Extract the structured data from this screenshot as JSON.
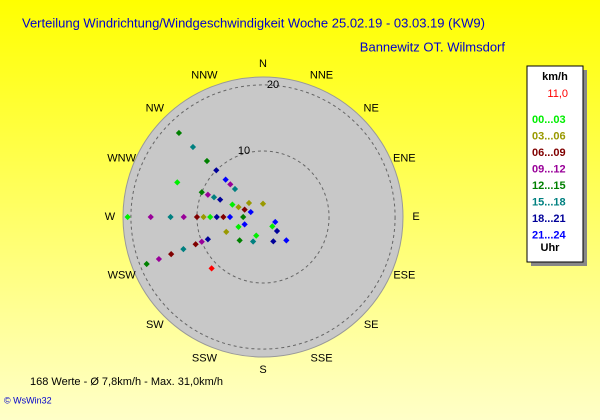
{
  "chart_data": {
    "type": "polar-scatter",
    "title": "Verteilung Windrichtung/Windgeschwindigkeit  Woche 25.02.19 - 03.03.19 (KW9)",
    "subtitle": "Bannewitz OT. Wilmsdorf",
    "directions": [
      "N",
      "NNE",
      "NE",
      "ENE",
      "E",
      "ESE",
      "SE",
      "SSE",
      "S",
      "SSW",
      "SW",
      "WSW",
      "W",
      "WNW",
      "NW",
      "NNW"
    ],
    "rlim": [
      0,
      21.2
    ],
    "rticks": [
      10,
      20
    ],
    "legend_title": "km/h",
    "current_value": {
      "value": 11.0,
      "label": "11,0",
      "direction": 225,
      "color": "#ff0000"
    },
    "legend_footer": "Uhr",
    "series": [
      {
        "name": "00...03",
        "color": "#00ee00",
        "direction": [
          292,
          292,
          270,
          270,
          248,
          135,
          200
        ],
        "values": [
          14,
          5,
          20.5,
          8,
          4,
          2,
          3
        ]
      },
      {
        "name": "03...06",
        "color": "#999900",
        "direction": [
          315,
          270,
          248,
          292,
          0
        ],
        "values": [
          3,
          9,
          6,
          4,
          2
        ]
      },
      {
        "name": "06...09",
        "color": "#800000",
        "direction": [
          270,
          270,
          248,
          248,
          292
        ],
        "values": [
          6,
          10,
          15,
          11,
          3
        ]
      },
      {
        "name": "09...12",
        "color": "#990099",
        "direction": [
          270,
          270,
          248,
          248,
          315,
          292
        ],
        "values": [
          12,
          17,
          10,
          17,
          7,
          9
        ]
      },
      {
        "name": "12...15",
        "color": "#008000",
        "direction": [
          315,
          315,
          248,
          270,
          292,
          225
        ],
        "values": [
          18,
          12,
          19,
          3,
          10,
          5
        ]
      },
      {
        "name": "15...18",
        "color": "#008080",
        "direction": [
          315,
          292,
          270,
          248,
          315,
          202
        ],
        "values": [
          15,
          8,
          14,
          13,
          6,
          4
        ]
      },
      {
        "name": "18...21",
        "color": "#000099",
        "direction": [
          292,
          270,
          248,
          135,
          157,
          315
        ],
        "values": [
          7,
          7,
          9,
          3,
          4,
          10
        ]
      },
      {
        "name": "21...24",
        "color": "#0000ff",
        "direction": [
          270,
          248,
          292,
          135,
          112,
          315
        ],
        "values": [
          5,
          3,
          2,
          5,
          2,
          8
        ]
      }
    ],
    "footer": "168 Werte   -   Ø 7,8km/h   -   Max. 31,0km/h",
    "copyright": "© WsWin32"
  }
}
